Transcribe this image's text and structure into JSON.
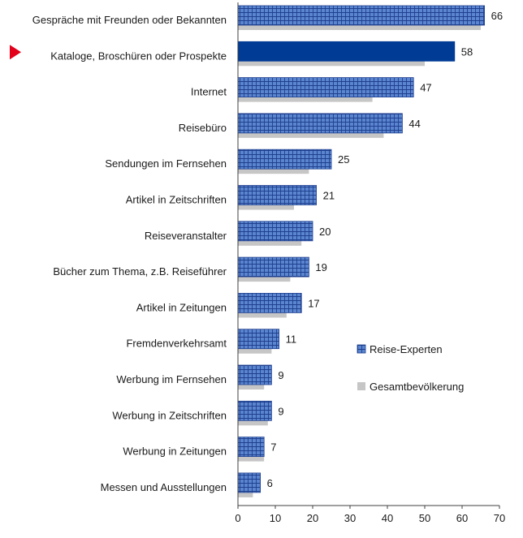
{
  "chart_data": {
    "type": "bar",
    "orientation": "horizontal",
    "categories": [
      "Gespräche mit Freunden oder Bekannten",
      "Kataloge, Broschüren oder Prospekte",
      "Internet",
      "Reisebüro",
      "Sendungen im Fernsehen",
      "Artikel in Zeitschriften",
      "Reiseveranstalter",
      "Bücher zum Thema, z.B. Reiseführer",
      "Artikel in Zeitungen",
      "Fremdenverkehrsamt",
      "Werbung im Fernsehen",
      "Werbung in Zeitschriften",
      "Werbung in Zeitungen",
      "Messen und Ausstellungen"
    ],
    "highlighted_category": "Kataloge, Broschüren oder Prospekte",
    "series": [
      {
        "name": "Reise-Experten",
        "values": [
          66,
          58,
          47,
          44,
          25,
          21,
          20,
          19,
          17,
          11,
          9,
          9,
          7,
          6
        ],
        "show_labels": true
      },
      {
        "name": "Gesamtbevölkerung",
        "values": [
          65,
          50,
          36,
          39,
          19,
          15,
          17,
          14,
          13,
          9,
          7,
          8,
          7,
          4
        ],
        "show_labels": false
      }
    ],
    "xlim": [
      0,
      70
    ],
    "xticks": [
      0,
      10,
      20,
      30,
      40,
      50,
      60,
      70
    ],
    "grid": false,
    "legend": "right",
    "colors": {
      "experts": "#5b86cf",
      "experts_grid": "#1f3f8f",
      "highlight": "#003b95",
      "population": "#c6c6c6",
      "marker": "#e2001a",
      "axis": "#404040"
    }
  }
}
